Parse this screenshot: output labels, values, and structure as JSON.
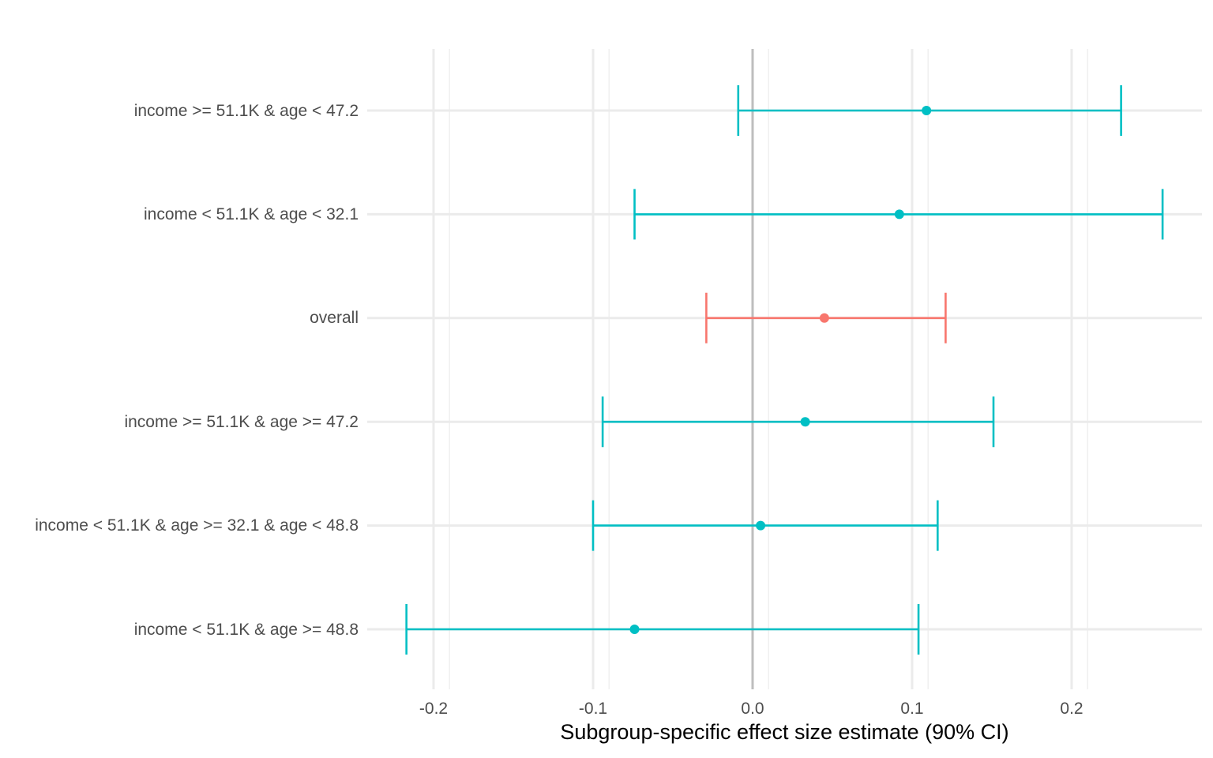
{
  "chart_data": {
    "type": "forest",
    "xlabel": "Subgroup-specific effect size estimate (90% CI)",
    "xlim": [
      -0.24,
      0.28
    ],
    "xticks": [
      {
        "value": -0.2,
        "label": "-0.2"
      },
      {
        "value": -0.1,
        "label": "-0.1"
      },
      {
        "value": 0.0,
        "label": "0.0"
      },
      {
        "value": 0.1,
        "label": "0.1"
      },
      {
        "value": 0.2,
        "label": "0.2"
      }
    ],
    "reference_line": 0,
    "grid": true,
    "colors": {
      "overall": "#F8766D",
      "subgroup": "#00BFC4"
    },
    "rows": [
      {
        "label": "income >= 51.1K & age < 47.2",
        "estimate": 0.109,
        "lower": -0.009,
        "upper": 0.231,
        "group": "subgroup"
      },
      {
        "label": "income < 51.1K & age < 32.1",
        "estimate": 0.092,
        "lower": -0.074,
        "upper": 0.257,
        "group": "subgroup"
      },
      {
        "label": "overall",
        "estimate": 0.045,
        "lower": -0.029,
        "upper": 0.121,
        "group": "overall"
      },
      {
        "label": "income >= 51.1K & age >= 47.2",
        "estimate": 0.033,
        "lower": -0.094,
        "upper": 0.151,
        "group": "subgroup"
      },
      {
        "label": "income < 51.1K & age >= 32.1 & age < 48.8",
        "estimate": 0.005,
        "lower": -0.1,
        "upper": 0.116,
        "group": "subgroup"
      },
      {
        "label": "income < 51.1K & age >= 48.8",
        "estimate": -0.074,
        "lower": -0.217,
        "upper": 0.104,
        "group": "subgroup"
      }
    ]
  }
}
